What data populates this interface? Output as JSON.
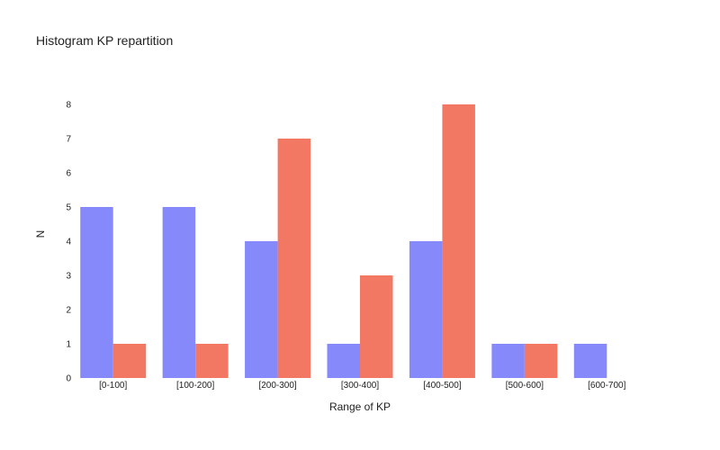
{
  "chart_data": {
    "type": "bar",
    "title": "Histogram KP repartition",
    "xlabel": "Range of KP",
    "ylabel": "N",
    "categories": [
      "[0-100]",
      "[100-200]",
      "[200-300]",
      "[300-400]",
      "[400-500]",
      "[500-600]",
      "[600-700]"
    ],
    "series": [
      {
        "values": [
          5,
          5,
          4,
          1,
          4,
          1,
          1
        ],
        "color": "#8589fa"
      },
      {
        "values": [
          1,
          1,
          7,
          3,
          8,
          1,
          0
        ],
        "color": "#f37864"
      }
    ],
    "yticks": [
      0,
      1,
      2,
      3,
      4,
      5,
      6,
      7,
      8
    ],
    "ylim": [
      0,
      8
    ],
    "grid": false,
    "legend": "none"
  }
}
